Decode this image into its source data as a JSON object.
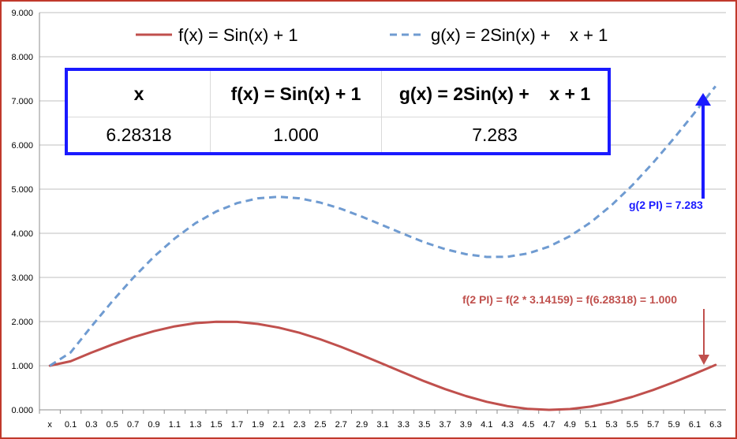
{
  "chart_data": {
    "type": "line",
    "x_labels": [
      "x",
      "0.1",
      "0.3",
      "0.5",
      "0.7",
      "0.9",
      "1.1",
      "1.3",
      "1.5",
      "1.7",
      "1.9",
      "2.1",
      "2.3",
      "2.5",
      "2.7",
      "2.9",
      "3.1",
      "3.3",
      "3.5",
      "3.7",
      "3.9",
      "4.1",
      "4.3",
      "4.5",
      "4.7",
      "4.9",
      "5.1",
      "5.3",
      "5.5",
      "5.7",
      "5.9",
      "6.1",
      "6.3"
    ],
    "y_ticks": [
      "0.000",
      "1.000",
      "2.000",
      "3.000",
      "4.000",
      "5.000",
      "6.000",
      "7.000",
      "8.000",
      "9.000"
    ],
    "ylim": [
      0,
      9
    ],
    "x": [
      0,
      0.1,
      0.3,
      0.5,
      0.7,
      0.9,
      1.1,
      1.3,
      1.5,
      1.7,
      1.9,
      2.1,
      2.3,
      2.5,
      2.7,
      2.9,
      3.1,
      3.3,
      3.5,
      3.7,
      3.9,
      4.1,
      4.3,
      4.5,
      4.7,
      4.9,
      5.1,
      5.3,
      5.5,
      5.7,
      5.9,
      6.1,
      6.3
    ],
    "series": [
      {
        "name": "f(x) = Sin(x) + 1",
        "color": "#c0504d",
        "style": "solid",
        "values": [
          1.0,
          1.1,
          1.296,
          1.479,
          1.644,
          1.783,
          1.891,
          1.964,
          1.997,
          1.992,
          1.946,
          1.863,
          1.746,
          1.598,
          1.427,
          1.239,
          1.042,
          0.842,
          0.649,
          0.47,
          0.313,
          0.182,
          0.084,
          0.022,
          0.0,
          0.018,
          0.074,
          0.168,
          0.295,
          0.45,
          0.626,
          0.818,
          1.017
        ]
      },
      {
        "name": "g(x) = 2Sin(x) +    x + 1",
        "color": "#6f9bd1",
        "style": "dashed",
        "values": [
          1.0,
          1.3,
          1.891,
          2.459,
          2.988,
          3.467,
          3.883,
          4.228,
          4.495,
          4.684,
          4.792,
          4.826,
          4.792,
          4.697,
          4.554,
          4.377,
          4.183,
          3.985,
          3.797,
          3.641,
          3.526,
          3.464,
          3.467,
          3.544,
          3.7,
          3.936,
          4.248,
          4.636,
          5.09,
          5.599,
          6.152,
          6.736,
          7.333
        ]
      }
    ],
    "annotations": {
      "g_label": "g(2 PI) = 7.283",
      "f_label": "f(2 PI) = f(2 * 3.14159) = f(6.28318) = 1.000"
    }
  },
  "legend": {
    "f_label": "f(x) = Sin(x) + 1",
    "g_label": "g(x) = 2Sin(x) +    x + 1"
  },
  "table": {
    "headers": [
      "x",
      "f(x) = Sin(x) + 1",
      "g(x) = 2Sin(x) +    x + 1"
    ],
    "values": [
      "6.28318",
      "1.000",
      "7.283"
    ]
  },
  "colors": {
    "f_series": "#c0504d",
    "g_series": "#6f9bd1",
    "annotation_blue": "#1a1aff",
    "table_border": "#1a1aff",
    "frame": "#c0392b"
  }
}
